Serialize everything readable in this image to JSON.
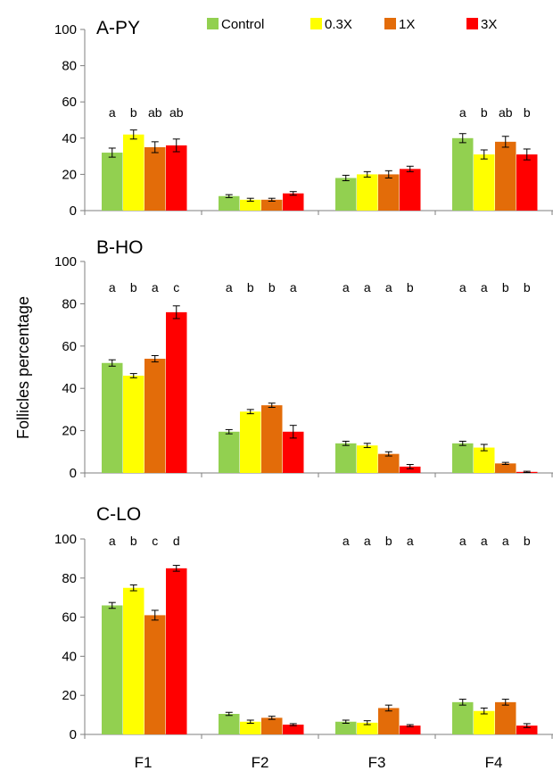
{
  "ylabel": "Follicles percentage",
  "legend": [
    {
      "name": "Control",
      "color": "#92d050"
    },
    {
      "name": "0.3X",
      "color": "#ffff00"
    },
    {
      "name": "1X",
      "color": "#e36c09"
    },
    {
      "name": "3X",
      "color": "#ff0000"
    }
  ],
  "categories": [
    "F1",
    "F2",
    "F3",
    "F4"
  ],
  "chart_data": [
    {
      "type": "bar",
      "title": "A-PY",
      "categories": [
        "F1",
        "F2",
        "F3",
        "F4"
      ],
      "ylim": [
        0,
        100
      ],
      "yticks": [
        0,
        20,
        40,
        60,
        80,
        100
      ],
      "series": [
        {
          "name": "Control",
          "values": [
            32,
            8,
            18,
            40
          ],
          "errors": [
            2.5,
            0.8,
            1.5,
            2.5
          ]
        },
        {
          "name": "0.3X",
          "values": [
            42,
            6,
            20,
            31
          ],
          "errors": [
            2.5,
            0.8,
            1.5,
            2.5
          ]
        },
        {
          "name": "1X",
          "values": [
            35,
            6,
            20,
            38
          ],
          "errors": [
            3,
            0.8,
            2,
            3
          ]
        },
        {
          "name": "3X",
          "values": [
            36,
            9.5,
            23,
            31
          ],
          "errors": [
            3.5,
            1,
            1.5,
            3
          ]
        }
      ],
      "significance": [
        [
          "a",
          "b",
          "ab",
          "ab"
        ],
        [
          "",
          "",
          "",
          ""
        ],
        [
          "",
          "",
          "",
          ""
        ],
        [
          "a",
          "b",
          "ab",
          "b"
        ]
      ]
    },
    {
      "type": "bar",
      "title": "B-HO",
      "categories": [
        "F1",
        "F2",
        "F3",
        "F4"
      ],
      "ylim": [
        0,
        100
      ],
      "yticks": [
        0,
        20,
        40,
        60,
        80,
        100
      ],
      "series": [
        {
          "name": "Control",
          "values": [
            52,
            19.5,
            14,
            14
          ],
          "errors": [
            1.5,
            1,
            1,
            1
          ]
        },
        {
          "name": "0.3X",
          "values": [
            46,
            29,
            13,
            12
          ],
          "errors": [
            1,
            1,
            1,
            1.5
          ]
        },
        {
          "name": "1X",
          "values": [
            54,
            32,
            9,
            4.5
          ],
          "errors": [
            1.5,
            1,
            1,
            0.5
          ]
        },
        {
          "name": "3X",
          "values": [
            76,
            19.5,
            3,
            0.5
          ],
          "errors": [
            3,
            3,
            1,
            0.3
          ]
        }
      ],
      "significance": [
        [
          "a",
          "b",
          "a",
          "c"
        ],
        [
          "a",
          "b",
          "b",
          "a"
        ],
        [
          "a",
          "a",
          "a",
          "b"
        ],
        [
          "a",
          "a",
          "b",
          "b"
        ]
      ]
    },
    {
      "type": "bar",
      "title": "C-LO",
      "categories": [
        "F1",
        "F2",
        "F3",
        "F4"
      ],
      "ylim": [
        0,
        100
      ],
      "yticks": [
        0,
        20,
        40,
        60,
        80,
        100
      ],
      "series": [
        {
          "name": "Control",
          "values": [
            66,
            10.5,
            6.5,
            16.5
          ],
          "errors": [
            1.5,
            0.8,
            0.8,
            1.5
          ]
        },
        {
          "name": "0.3X",
          "values": [
            75,
            6.5,
            6,
            12
          ],
          "errors": [
            1.5,
            0.8,
            1,
            1.5
          ]
        },
        {
          "name": "1X",
          "values": [
            61,
            8.5,
            13.5,
            16.5
          ],
          "errors": [
            2.5,
            0.8,
            1.5,
            1.5
          ]
        },
        {
          "name": "3X",
          "values": [
            85,
            5,
            4.5,
            4.5
          ],
          "errors": [
            1.5,
            0.5,
            0.5,
            1
          ]
        }
      ],
      "significance": [
        [
          "a",
          "b",
          "c",
          "d"
        ],
        [
          "",
          "",
          "",
          ""
        ],
        [
          "a",
          "a",
          "b",
          "a"
        ],
        [
          "a",
          "a",
          "a",
          "b"
        ]
      ]
    }
  ]
}
